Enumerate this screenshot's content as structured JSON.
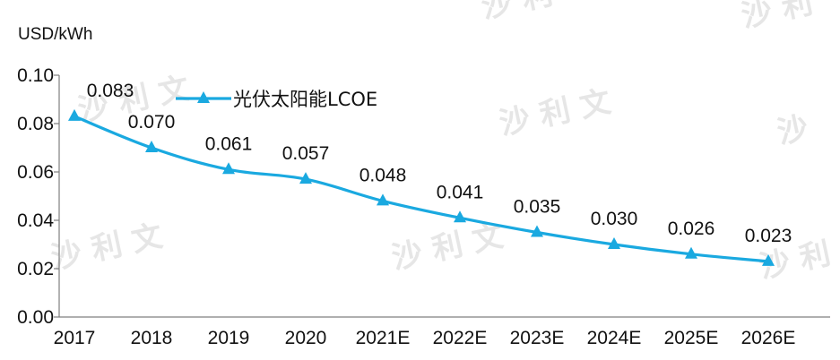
{
  "chart_data": {
    "type": "line",
    "unit_label": "USD/kWh",
    "categories": [
      "2017",
      "2018",
      "2019",
      "2020",
      "2021E",
      "2022E",
      "2023E",
      "2024E",
      "2025E",
      "2026E"
    ],
    "series": [
      {
        "name": "光伏太阳能LCOE",
        "values": [
          0.083,
          0.07,
          0.061,
          0.057,
          0.048,
          0.041,
          0.035,
          0.03,
          0.026,
          0.023
        ],
        "data_labels": [
          "0.083",
          "0.070",
          "0.061",
          "0.057",
          "0.048",
          "0.041",
          "0.035",
          "0.030",
          "0.026",
          "0.023"
        ],
        "color": "#1aa9e0",
        "marker": "triangle"
      }
    ],
    "ylim": [
      0,
      0.1
    ],
    "yticks": [
      "0.00",
      "0.02",
      "0.04",
      "0.06",
      "0.08",
      "0.10"
    ],
    "grid": false,
    "legend_position": "top-left"
  }
}
